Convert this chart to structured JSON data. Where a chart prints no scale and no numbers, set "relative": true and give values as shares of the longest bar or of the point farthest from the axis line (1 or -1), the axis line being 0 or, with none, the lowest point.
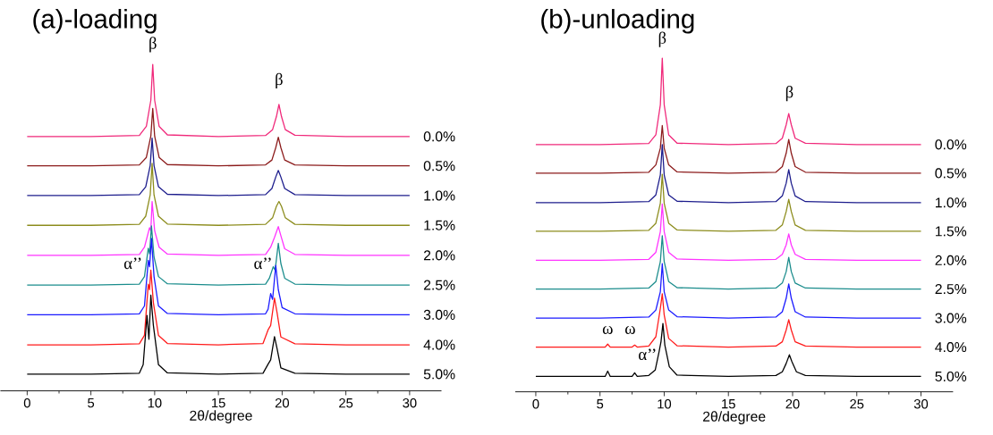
{
  "chart_data": [
    {
      "type": "line",
      "title": "(a)-loading",
      "xlabel": "2θ/degree",
      "relative": true,
      "xlim": [
        -2.1,
        32.5
      ],
      "xticks": [
        0,
        5,
        10,
        15,
        20,
        25,
        30
      ],
      "annotations": [
        "β",
        "β",
        "α’’",
        "α’’"
      ],
      "series": [
        {
          "name": "0.0%",
          "color": "#f0287a",
          "x": [
            0,
            5,
            8.8,
            9.35,
            9.7,
            9.85,
            10.0,
            10.35,
            11,
            15,
            18.7,
            19.25,
            19.55,
            19.75,
            19.95,
            20.25,
            21,
            25,
            30
          ],
          "values": [
            0.779,
            0.779,
            0.782,
            0.81,
            0.89,
            1.0,
            0.89,
            0.81,
            0.784,
            0.779,
            0.782,
            0.8,
            0.84,
            0.877,
            0.84,
            0.8,
            0.783,
            0.779,
            0.779
          ]
        },
        {
          "name": "0.5%",
          "color": "#8b1a1a",
          "x": [
            0,
            5,
            8.8,
            9.35,
            9.7,
            9.85,
            10.0,
            10.35,
            11,
            15,
            18.7,
            19.2,
            19.5,
            19.7,
            19.9,
            20.2,
            21,
            25,
            30
          ],
          "values": [
            0.689,
            0.689,
            0.692,
            0.715,
            0.78,
            0.865,
            0.78,
            0.715,
            0.693,
            0.689,
            0.692,
            0.707,
            0.745,
            0.777,
            0.745,
            0.707,
            0.692,
            0.689,
            0.689
          ]
        },
        {
          "name": "1.0%",
          "color": "#1c1c8c",
          "x": [
            0,
            5,
            8.8,
            9.3,
            9.65,
            9.8,
            9.95,
            10.3,
            11,
            15,
            18.7,
            19.2,
            19.5,
            19.7,
            19.9,
            20.2,
            21,
            25,
            30
          ],
          "values": [
            0.598,
            0.598,
            0.601,
            0.625,
            0.69,
            0.774,
            0.69,
            0.625,
            0.602,
            0.598,
            0.601,
            0.62,
            0.655,
            0.675,
            0.655,
            0.62,
            0.601,
            0.598,
            0.598
          ]
        },
        {
          "name": "1.5%",
          "color": "#8c8c1c",
          "x": [
            0,
            5,
            8.8,
            9.3,
            9.65,
            9.8,
            9.95,
            10.3,
            11,
            15,
            18.7,
            19.25,
            19.55,
            19.75,
            19.95,
            20.25,
            21,
            25,
            30
          ],
          "values": [
            0.507,
            0.507,
            0.51,
            0.535,
            0.6,
            0.697,
            0.6,
            0.535,
            0.511,
            0.507,
            0.51,
            0.53,
            0.565,
            0.58,
            0.565,
            0.53,
            0.51,
            0.507,
            0.507
          ]
        },
        {
          "name": "2.0%",
          "color": "#ff33ff",
          "x": [
            0,
            5,
            8.8,
            9.2,
            9.6,
            9.7,
            9.8,
            10.0,
            10.35,
            11,
            15,
            18.7,
            19.1,
            19.4,
            19.7,
            19.9,
            20.2,
            21,
            25,
            30
          ],
          "values": [
            0.415,
            0.415,
            0.418,
            0.44,
            0.5,
            0.49,
            0.58,
            0.49,
            0.44,
            0.419,
            0.415,
            0.418,
            0.44,
            0.47,
            0.503,
            0.475,
            0.435,
            0.418,
            0.415,
            0.415
          ]
        },
        {
          "name": "2.5%",
          "color": "#1a8c8c",
          "x": [
            0,
            5,
            8.8,
            9.2,
            9.5,
            9.6,
            9.75,
            9.95,
            10.3,
            11,
            15,
            18.7,
            19.0,
            19.3,
            19.45,
            19.7,
            19.9,
            20.2,
            21,
            25,
            30
          ],
          "values": [
            0.324,
            0.324,
            0.327,
            0.35,
            0.437,
            0.42,
            0.505,
            0.41,
            0.35,
            0.328,
            0.324,
            0.327,
            0.345,
            0.38,
            0.37,
            0.452,
            0.39,
            0.345,
            0.327,
            0.324,
            0.324
          ]
        },
        {
          "name": "3.0%",
          "color": "#1a1aff",
          "x": [
            0,
            5,
            8.8,
            9.2,
            9.5,
            9.6,
            9.75,
            9.95,
            10.3,
            11,
            15,
            18.7,
            18.9,
            19.1,
            19.25,
            19.5,
            19.7,
            20.0,
            21,
            25,
            30
          ],
          "values": [
            0.233,
            0.233,
            0.236,
            0.26,
            0.4,
            0.38,
            0.467,
            0.35,
            0.26,
            0.237,
            0.233,
            0.236,
            0.25,
            0.298,
            0.28,
            0.384,
            0.31,
            0.255,
            0.236,
            0.233,
            0.233
          ]
        },
        {
          "name": "4.0%",
          "color": "#ff1a1a",
          "x": [
            0,
            5,
            8.8,
            9.2,
            9.5,
            9.6,
            9.7,
            9.9,
            10.3,
            11,
            15,
            18.5,
            18.9,
            19.1,
            19.4,
            19.6,
            19.9,
            21,
            25,
            30
          ],
          "values": [
            0.141,
            0.141,
            0.144,
            0.17,
            0.327,
            0.31,
            0.37,
            0.27,
            0.17,
            0.145,
            0.141,
            0.145,
            0.187,
            0.2,
            0.284,
            0.24,
            0.165,
            0.144,
            0.141,
            0.141
          ]
        },
        {
          "name": "5.0%",
          "color": "#000000",
          "x": [
            0,
            5,
            8.8,
            9.1,
            9.4,
            9.55,
            9.7,
            9.9,
            10.3,
            11,
            15,
            18.5,
            18.9,
            19.1,
            19.4,
            19.6,
            19.9,
            21,
            25,
            30
          ],
          "values": [
            0.051,
            0.051,
            0.054,
            0.08,
            0.231,
            0.158,
            0.293,
            0.2,
            0.08,
            0.055,
            0.051,
            0.054,
            0.082,
            0.095,
            0.166,
            0.13,
            0.07,
            0.054,
            0.051,
            0.051
          ]
        }
      ]
    },
    {
      "type": "line",
      "title": "(b)-unloading",
      "xlabel": "2θ/degree",
      "relative": true,
      "xlim": [
        -1.6,
        32.5
      ],
      "xticks": [
        0,
        5,
        10,
        15,
        20,
        25,
        30
      ],
      "annotations": [
        "β",
        "β",
        "ω",
        "ω",
        "α’’"
      ],
      "series": [
        {
          "name": "0.0%",
          "color": "#f0287a",
          "x": [
            0,
            5,
            8.8,
            9.35,
            9.7,
            9.85,
            10.0,
            10.35,
            11,
            15,
            18.7,
            19.2,
            19.5,
            19.7,
            19.9,
            20.2,
            21,
            25,
            30
          ],
          "values": [
            0.741,
            0.741,
            0.744,
            0.77,
            0.86,
            1.0,
            0.86,
            0.77,
            0.745,
            0.741,
            0.744,
            0.76,
            0.8,
            0.834,
            0.8,
            0.76,
            0.745,
            0.741,
            0.741
          ]
        },
        {
          "name": "0.5%",
          "color": "#8b1a1a",
          "x": [
            0,
            5,
            8.8,
            9.35,
            9.7,
            9.85,
            10.0,
            10.35,
            11,
            15,
            18.7,
            19.2,
            19.5,
            19.7,
            19.9,
            20.2,
            21,
            25,
            30
          ],
          "values": [
            0.655,
            0.655,
            0.658,
            0.68,
            0.73,
            0.798,
            0.73,
            0.68,
            0.659,
            0.655,
            0.658,
            0.675,
            0.715,
            0.756,
            0.715,
            0.675,
            0.658,
            0.655,
            0.655
          ]
        },
        {
          "name": "1.0%",
          "color": "#1c1c8c",
          "x": [
            0,
            5,
            8.8,
            9.35,
            9.7,
            9.85,
            10.0,
            10.35,
            11,
            15,
            18.7,
            19.2,
            19.5,
            19.7,
            19.9,
            20.2,
            21,
            25,
            30
          ],
          "values": [
            0.567,
            0.567,
            0.57,
            0.59,
            0.65,
            0.741,
            0.65,
            0.59,
            0.571,
            0.567,
            0.57,
            0.587,
            0.625,
            0.666,
            0.625,
            0.587,
            0.57,
            0.567,
            0.567
          ]
        },
        {
          "name": "1.5%",
          "color": "#8c8c1c",
          "x": [
            0,
            5,
            8.8,
            9.35,
            9.7,
            9.85,
            10.0,
            10.35,
            11,
            15,
            18.7,
            19.2,
            19.5,
            19.7,
            19.9,
            20.2,
            21,
            25,
            30
          ],
          "values": [
            0.481,
            0.481,
            0.484,
            0.505,
            0.565,
            0.652,
            0.565,
            0.505,
            0.485,
            0.481,
            0.484,
            0.5,
            0.54,
            0.577,
            0.54,
            0.5,
            0.484,
            0.481,
            0.481
          ]
        },
        {
          "name": "2.0%",
          "color": "#ff33ff",
          "x": [
            0,
            5,
            8.8,
            9.35,
            9.7,
            9.85,
            10.0,
            10.35,
            11,
            15,
            18.7,
            19.2,
            19.5,
            19.7,
            19.9,
            20.2,
            21,
            25,
            30
          ],
          "values": [
            0.394,
            0.394,
            0.397,
            0.418,
            0.48,
            0.563,
            0.48,
            0.418,
            0.398,
            0.394,
            0.397,
            0.412,
            0.44,
            0.473,
            0.44,
            0.412,
            0.397,
            0.394,
            0.394
          ]
        },
        {
          "name": "2.5%",
          "color": "#1a8c8c",
          "x": [
            0,
            5,
            8.8,
            9.35,
            9.7,
            9.85,
            10.0,
            10.35,
            11,
            15,
            18.7,
            19.2,
            19.5,
            19.7,
            19.9,
            20.2,
            21,
            25,
            30
          ],
          "values": [
            0.308,
            0.308,
            0.311,
            0.33,
            0.39,
            0.468,
            0.39,
            0.33,
            0.312,
            0.308,
            0.311,
            0.326,
            0.36,
            0.403,
            0.36,
            0.326,
            0.311,
            0.308,
            0.308
          ]
        },
        {
          "name": "3.0%",
          "color": "#1a1aff",
          "x": [
            0,
            5,
            8.8,
            9.35,
            9.7,
            9.85,
            10.0,
            10.35,
            11,
            15,
            18.7,
            19.2,
            19.5,
            19.7,
            19.9,
            20.2,
            21,
            25,
            30
          ],
          "values": [
            0.221,
            0.221,
            0.224,
            0.245,
            0.3,
            0.384,
            0.3,
            0.245,
            0.225,
            0.221,
            0.224,
            0.24,
            0.28,
            0.323,
            0.28,
            0.24,
            0.224,
            0.221,
            0.221
          ]
        },
        {
          "name": "4.0%",
          "color": "#ff1a1a",
          "x": [
            0,
            5,
            5.4,
            5.6,
            5.8,
            7.5,
            7.7,
            7.9,
            8.8,
            9.35,
            9.7,
            9.85,
            10.0,
            10.35,
            11,
            15,
            18.7,
            19.2,
            19.5,
            19.7,
            19.9,
            20.2,
            21,
            25,
            30
          ],
          "values": [
            0.134,
            0.134,
            0.134,
            0.143,
            0.134,
            0.134,
            0.14,
            0.134,
            0.137,
            0.165,
            0.25,
            0.294,
            0.23,
            0.16,
            0.138,
            0.134,
            0.137,
            0.15,
            0.185,
            0.216,
            0.185,
            0.15,
            0.137,
            0.134,
            0.134
          ]
        },
        {
          "name": "5.0%",
          "color": "#000000",
          "x": [
            0,
            5,
            5.4,
            5.6,
            5.8,
            7.5,
            7.7,
            7.9,
            8.8,
            9.3,
            9.6,
            9.75,
            9.9,
            10.05,
            10.4,
            11,
            15,
            18.7,
            19.2,
            19.5,
            19.75,
            19.95,
            20.3,
            21,
            25,
            30
          ],
          "values": [
            0.046,
            0.046,
            0.046,
            0.062,
            0.046,
            0.046,
            0.057,
            0.046,
            0.049,
            0.065,
            0.12,
            0.15,
            0.205,
            0.14,
            0.075,
            0.05,
            0.046,
            0.049,
            0.06,
            0.085,
            0.111,
            0.09,
            0.06,
            0.049,
            0.046,
            0.046
          ]
        }
      ]
    }
  ]
}
